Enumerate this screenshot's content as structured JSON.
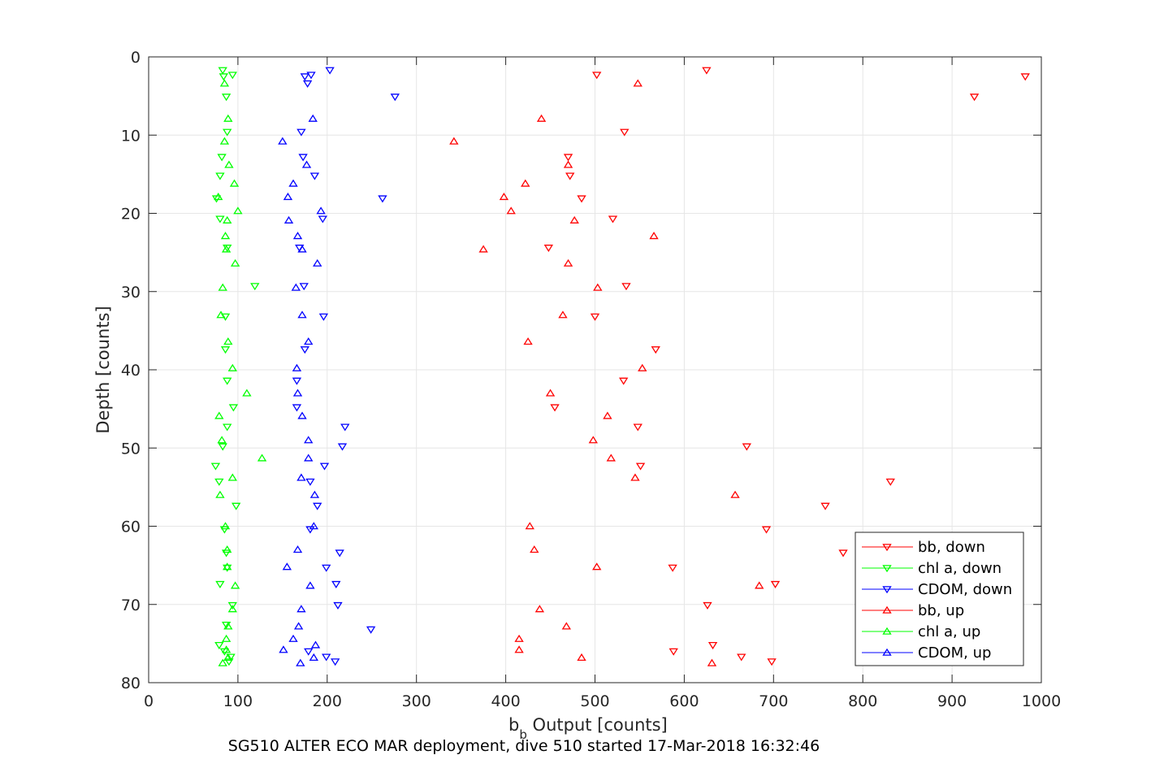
{
  "chart_data": {
    "type": "scatter",
    "caption": "SG510 ALTER ECO MAR deployment, dive 510 started 17-Mar-2018 16:32:46",
    "xlabel_main": "b",
    "xlabel_sub": "b",
    "xlabel_rest": " Output [counts]",
    "ylabel": "Depth [counts]",
    "xlim": [
      0,
      1000
    ],
    "ylim": [
      0,
      80
    ],
    "y_reversed": true,
    "grid": true,
    "legend_position": "bottom-right",
    "xticks": [
      "0",
      "100",
      "200",
      "300",
      "400",
      "500",
      "600",
      "700",
      "800",
      "900",
      "1000"
    ],
    "yticks": [
      "0",
      "10",
      "20",
      "30",
      "40",
      "50",
      "60",
      "70",
      "80"
    ],
    "series": [
      {
        "name": "bb, down",
        "color": "#ff0000",
        "marker": "triangle-down",
        "points": [
          [
            625,
            1.7
          ],
          [
            502,
            2.3
          ],
          [
            982,
            2.5
          ],
          [
            925,
            5.1
          ],
          [
            533,
            9.6
          ],
          [
            470,
            12.8
          ],
          [
            472,
            15.2
          ],
          [
            485,
            18.1
          ],
          [
            520,
            20.7
          ],
          [
            448,
            24.4
          ],
          [
            535,
            29.3
          ],
          [
            500,
            33.2
          ],
          [
            568,
            37.4
          ],
          [
            532,
            41.4
          ],
          [
            455,
            44.8
          ],
          [
            548,
            47.3
          ],
          [
            670,
            49.8
          ],
          [
            551,
            52.3
          ],
          [
            831,
            54.3
          ],
          [
            758,
            57.4
          ],
          [
            692,
            60.4
          ],
          [
            778,
            63.4
          ],
          [
            587,
            65.3
          ],
          [
            702,
            67.4
          ],
          [
            626,
            70.1
          ],
          [
            632,
            75.2
          ],
          [
            588,
            76.0
          ],
          [
            664,
            76.7
          ],
          [
            698,
            77.3
          ]
        ]
      },
      {
        "name": "chl a, down",
        "color": "#00ff00",
        "marker": "triangle-down",
        "points": [
          [
            83,
            1.7
          ],
          [
            94,
            2.3
          ],
          [
            84,
            2.5
          ],
          [
            87,
            5.1
          ],
          [
            88,
            9.6
          ],
          [
            82,
            12.8
          ],
          [
            80,
            15.2
          ],
          [
            76,
            18.1
          ],
          [
            80,
            20.7
          ],
          [
            88,
            24.4
          ],
          [
            119,
            29.3
          ],
          [
            86,
            33.2
          ],
          [
            86,
            37.4
          ],
          [
            88,
            41.4
          ],
          [
            95,
            44.8
          ],
          [
            88,
            47.3
          ],
          [
            83,
            49.8
          ],
          [
            75,
            52.3
          ],
          [
            79,
            54.3
          ],
          [
            98,
            57.4
          ],
          [
            85,
            60.4
          ],
          [
            87,
            63.4
          ],
          [
            88,
            65.3
          ],
          [
            80,
            67.4
          ],
          [
            94,
            70.1
          ],
          [
            87,
            72.6
          ],
          [
            79,
            75.2
          ],
          [
            85,
            76.0
          ],
          [
            92,
            76.7
          ],
          [
            90,
            77.3
          ]
        ]
      },
      {
        "name": "CDOM, down",
        "color": "#0000ff",
        "marker": "triangle-down",
        "points": [
          [
            203,
            1.7
          ],
          [
            175,
            2.5
          ],
          [
            182,
            2.3
          ],
          [
            178,
            3.4
          ],
          [
            276,
            5.1
          ],
          [
            171,
            9.6
          ],
          [
            173,
            12.8
          ],
          [
            186,
            15.2
          ],
          [
            262,
            18.1
          ],
          [
            195,
            20.7
          ],
          [
            169,
            24.4
          ],
          [
            174,
            29.3
          ],
          [
            196,
            33.2
          ],
          [
            175,
            37.4
          ],
          [
            166,
            41.4
          ],
          [
            166,
            44.8
          ],
          [
            220,
            47.3
          ],
          [
            217,
            49.8
          ],
          [
            197,
            52.3
          ],
          [
            181,
            54.3
          ],
          [
            189,
            57.4
          ],
          [
            181,
            60.4
          ],
          [
            214,
            63.4
          ],
          [
            199,
            65.3
          ],
          [
            210,
            67.4
          ],
          [
            212,
            70.1
          ],
          [
            249,
            73.2
          ],
          [
            179,
            76.0
          ],
          [
            199,
            76.7
          ],
          [
            209,
            77.3
          ]
        ]
      },
      {
        "name": "bb, up",
        "color": "#ff0000",
        "marker": "triangle-up",
        "points": [
          [
            548,
            3.4
          ],
          [
            440,
            7.9
          ],
          [
            342,
            10.8
          ],
          [
            470,
            13.8
          ],
          [
            422,
            16.2
          ],
          [
            398,
            17.9
          ],
          [
            406,
            19.7
          ],
          [
            477,
            20.9
          ],
          [
            566,
            22.9
          ],
          [
            375,
            24.6
          ],
          [
            470,
            26.4
          ],
          [
            503,
            29.5
          ],
          [
            464,
            33.0
          ],
          [
            425,
            36.4
          ],
          [
            553,
            39.8
          ],
          [
            450,
            43.0
          ],
          [
            514,
            45.9
          ],
          [
            498,
            49.0
          ],
          [
            518,
            51.3
          ],
          [
            545,
            53.8
          ],
          [
            657,
            56.0
          ],
          [
            427,
            60.0
          ],
          [
            432,
            63.0
          ],
          [
            502,
            65.2
          ],
          [
            684,
            67.6
          ],
          [
            438,
            70.6
          ],
          [
            468,
            72.8
          ],
          [
            415,
            74.4
          ],
          [
            415,
            75.8
          ],
          [
            485,
            76.8
          ],
          [
            631,
            77.5
          ]
        ]
      },
      {
        "name": "chl a, up",
        "color": "#00ff00",
        "marker": "triangle-up",
        "points": [
          [
            85,
            3.4
          ],
          [
            89,
            7.9
          ],
          [
            85,
            10.8
          ],
          [
            90,
            13.8
          ],
          [
            96,
            16.2
          ],
          [
            78,
            17.9
          ],
          [
            100,
            19.7
          ],
          [
            88,
            20.9
          ],
          [
            86,
            22.9
          ],
          [
            87,
            24.6
          ],
          [
            97,
            26.4
          ],
          [
            83,
            29.5
          ],
          [
            81,
            33.0
          ],
          [
            89,
            36.4
          ],
          [
            94,
            39.8
          ],
          [
            110,
            43.0
          ],
          [
            79,
            45.9
          ],
          [
            82,
            49.0
          ],
          [
            127,
            51.3
          ],
          [
            94,
            53.8
          ],
          [
            80,
            56.0
          ],
          [
            86,
            60.0
          ],
          [
            88,
            63.0
          ],
          [
            88,
            65.2
          ],
          [
            97,
            67.6
          ],
          [
            94,
            70.6
          ],
          [
            89,
            72.8
          ],
          [
            87,
            74.4
          ],
          [
            87,
            75.8
          ],
          [
            89,
            76.8
          ],
          [
            83,
            77.5
          ]
        ]
      },
      {
        "name": "CDOM, up",
        "color": "#0000ff",
        "marker": "triangle-up",
        "points": [
          [
            184,
            7.9
          ],
          [
            150,
            10.8
          ],
          [
            177,
            13.8
          ],
          [
            162,
            16.2
          ],
          [
            156,
            17.9
          ],
          [
            193,
            19.7
          ],
          [
            157,
            20.9
          ],
          [
            167,
            22.9
          ],
          [
            172,
            24.6
          ],
          [
            189,
            26.4
          ],
          [
            165,
            29.5
          ],
          [
            172,
            33.0
          ],
          [
            179,
            36.4
          ],
          [
            166,
            39.8
          ],
          [
            167,
            43.0
          ],
          [
            172,
            45.9
          ],
          [
            179,
            49.0
          ],
          [
            179,
            51.3
          ],
          [
            171,
            53.8
          ],
          [
            186,
            56.0
          ],
          [
            185,
            60.0
          ],
          [
            167,
            63.0
          ],
          [
            155,
            65.2
          ],
          [
            181,
            67.6
          ],
          [
            171,
            70.6
          ],
          [
            168,
            72.8
          ],
          [
            162,
            74.4
          ],
          [
            151,
            75.8
          ],
          [
            185,
            76.8
          ],
          [
            170,
            77.5
          ],
          [
            187,
            75.2
          ]
        ]
      }
    ]
  }
}
